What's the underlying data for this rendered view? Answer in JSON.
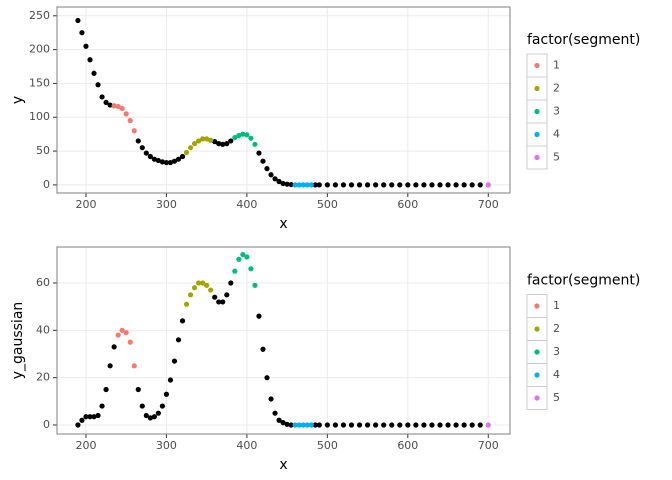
{
  "chart_data": [
    {
      "type": "scatter",
      "x_label": "x",
      "y_label": "y",
      "legend_title": "factor(segment)",
      "xlim": [
        164,
        727
      ],
      "ylim": [
        -12,
        263
      ],
      "xticks": [
        200,
        300,
        400,
        500,
        600,
        700
      ],
      "yticks": [
        0,
        50,
        100,
        150,
        200,
        250
      ],
      "grid": true,
      "series": [
        {
          "color": "#000000",
          "x": [
            190,
            195,
            200,
            205,
            210,
            215,
            220,
            225,
            230,
            265,
            270,
            275,
            280,
            285,
            290,
            295,
            300,
            305,
            310,
            315,
            320,
            360,
            365,
            370,
            375,
            380,
            415,
            420,
            425,
            430,
            435,
            440,
            445,
            450,
            455,
            485,
            490,
            500,
            510,
            520,
            530,
            540,
            550,
            560,
            570,
            580,
            590,
            600,
            610,
            620,
            630,
            640,
            650,
            660,
            670,
            680,
            690
          ],
          "values": [
            243,
            225,
            205,
            185,
            165,
            148,
            130,
            122,
            118,
            65,
            55,
            47,
            42,
            38,
            36,
            34,
            33,
            33,
            35,
            38,
            42,
            64,
            61,
            60,
            61,
            65,
            47,
            35,
            24,
            15,
            9,
            5,
            2,
            1,
            0.5,
            0,
            0,
            0,
            0,
            0,
            0,
            0,
            0,
            0,
            0,
            0,
            0,
            0,
            0,
            0,
            0,
            0,
            0,
            0,
            0,
            0,
            0
          ]
        },
        {
          "name": "1",
          "color": "#F8766D",
          "x": [
            235,
            240,
            245,
            250,
            255,
            260
          ],
          "values": [
            117,
            116,
            113,
            105,
            95,
            80
          ]
        },
        {
          "name": "2",
          "color": "#A3A500",
          "x": [
            325,
            330,
            335,
            340,
            345,
            350,
            355
          ],
          "values": [
            48,
            55,
            61,
            65,
            68,
            68,
            66
          ]
        },
        {
          "name": "3",
          "color": "#00BF7D",
          "x": [
            385,
            390,
            395,
            400,
            405,
            410
          ],
          "values": [
            70,
            73,
            75,
            74,
            69,
            60
          ]
        },
        {
          "name": "4",
          "color": "#00B0F6",
          "x": [
            460,
            465,
            470,
            475,
            480
          ],
          "values": [
            0,
            0,
            0,
            0,
            0
          ]
        },
        {
          "name": "5",
          "color": "#E76BF3",
          "x": [
            700
          ],
          "values": [
            0
          ]
        }
      ]
    },
    {
      "type": "scatter",
      "x_label": "x",
      "y_label": "y_gaussian",
      "legend_title": "factor(segment)",
      "xlim": [
        164,
        727
      ],
      "ylim": [
        -3.8,
        75.2
      ],
      "xticks": [
        200,
        300,
        400,
        500,
        600,
        700
      ],
      "yticks": [
        0,
        20,
        40,
        60
      ],
      "grid": true,
      "series": [
        {
          "color": "#000000",
          "x": [
            190,
            195,
            200,
            205,
            210,
            215,
            220,
            225,
            230,
            235,
            265,
            270,
            275,
            280,
            285,
            290,
            295,
            300,
            305,
            310,
            315,
            320,
            360,
            365,
            370,
            375,
            380,
            415,
            420,
            425,
            430,
            435,
            440,
            445,
            450,
            455,
            485,
            490,
            500,
            510,
            520,
            530,
            540,
            550,
            560,
            570,
            580,
            590,
            600,
            610,
            620,
            630,
            640,
            650,
            660,
            670,
            680,
            690
          ],
          "values": [
            0,
            2,
            3.5,
            3.5,
            3.5,
            4,
            8,
            15,
            25,
            33,
            15,
            8,
            4,
            3,
            3.5,
            5,
            8,
            13,
            19,
            27,
            36,
            44,
            54,
            52,
            52,
            55,
            60,
            46,
            32,
            20,
            11,
            5,
            2,
            1,
            0.3,
            0,
            0,
            0,
            0,
            0,
            0,
            0,
            0,
            0,
            0,
            0,
            0,
            0,
            0,
            0,
            0,
            0,
            0,
            0,
            0,
            0,
            0,
            0
          ]
        },
        {
          "name": "1",
          "color": "#F8766D",
          "x": [
            240,
            245,
            250,
            255,
            260
          ],
          "values": [
            38,
            40,
            39,
            35,
            25
          ]
        },
        {
          "name": "2",
          "color": "#A3A500",
          "x": [
            325,
            330,
            335,
            340,
            345,
            350,
            355
          ],
          "values": [
            51,
            55,
            58,
            60,
            60,
            59,
            57
          ]
        },
        {
          "name": "3",
          "color": "#00BF7D",
          "x": [
            385,
            390,
            395,
            400,
            405,
            410
          ],
          "values": [
            65,
            70,
            72,
            71,
            66,
            59
          ]
        },
        {
          "name": "4",
          "color": "#00B0F6",
          "x": [
            460,
            465,
            470,
            475,
            480
          ],
          "values": [
            0,
            0,
            0,
            0,
            0
          ]
        },
        {
          "name": "5",
          "color": "#E76BF3",
          "x": [
            700
          ],
          "values": [
            0
          ]
        }
      ]
    }
  ]
}
